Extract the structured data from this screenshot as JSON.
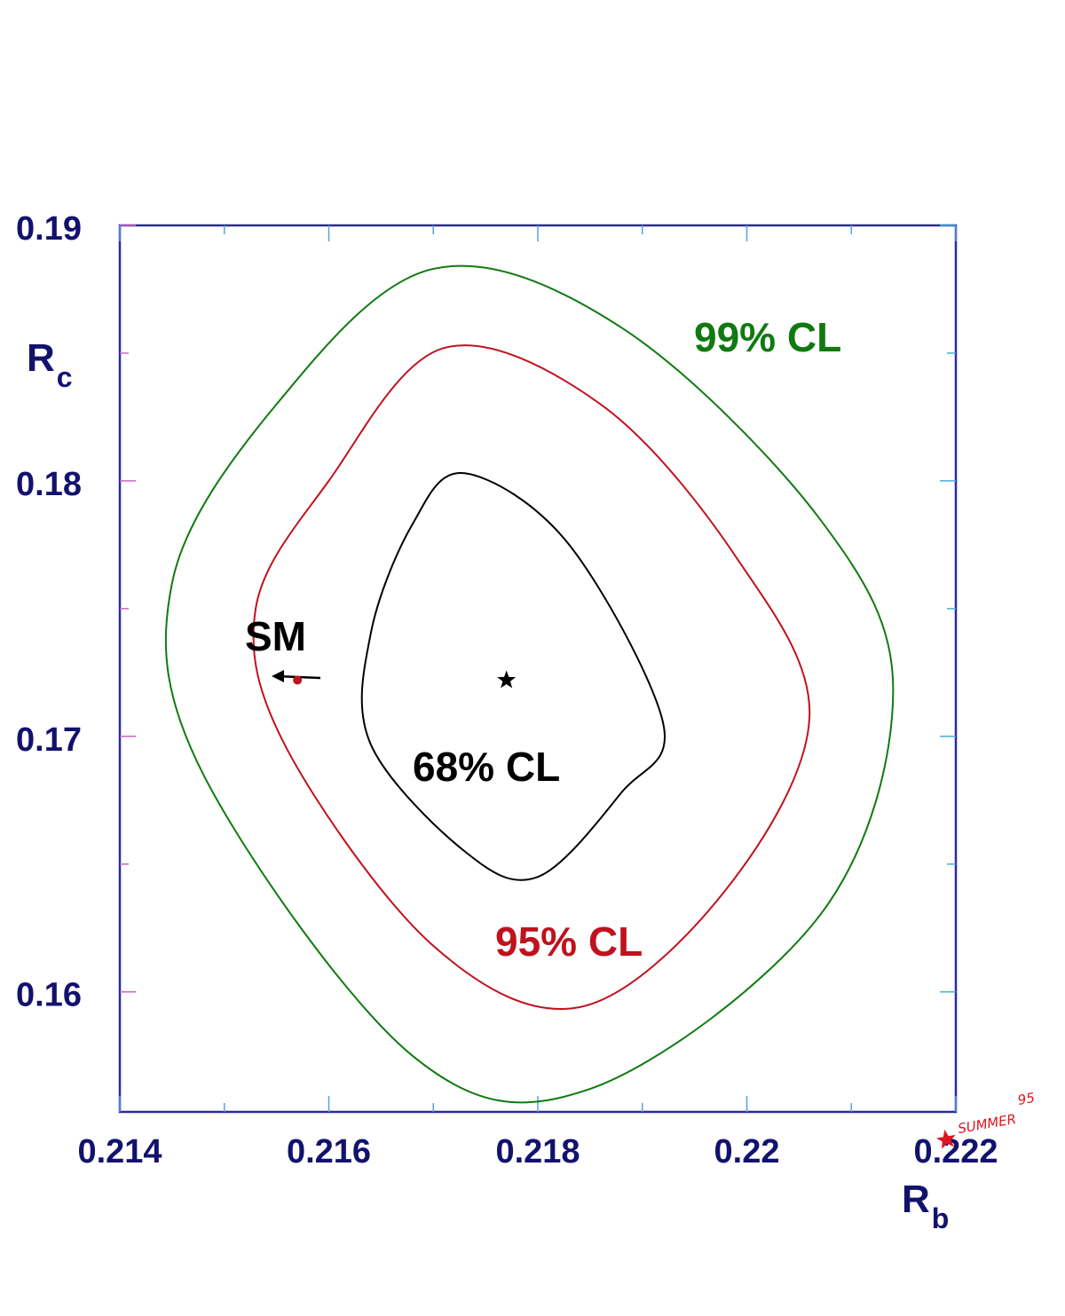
{
  "chart_data": {
    "type": "scatter",
    "xlabel": "R",
    "xlabel_sub": "b",
    "ylabel": "R",
    "ylabel_sub": "c",
    "xlim": [
      0.214,
      0.222
    ],
    "ylim": [
      0.1553,
      0.19
    ],
    "x_ticks": [
      {
        "value": 0.214,
        "label": "0.214"
      },
      {
        "value": 0.216,
        "label": "0.216"
      },
      {
        "value": 0.218,
        "label": "0.218"
      },
      {
        "value": 0.22,
        "label": "0.22"
      },
      {
        "value": 0.222,
        "label": "0.222"
      }
    ],
    "y_ticks": [
      {
        "value": 0.16,
        "label": "0.16"
      },
      {
        "value": 0.17,
        "label": "0.17"
      },
      {
        "value": 0.18,
        "label": "0.18"
      },
      {
        "value": 0.19,
        "label": "0.19"
      }
    ],
    "grid": false,
    "best_fit": {
      "x": 0.2177,
      "y": 0.1722
    },
    "sm_point": {
      "x": 0.2157,
      "y": 0.1722,
      "label": "SM"
    },
    "contours": [
      {
        "name": "68% CL",
        "label": "68% CL",
        "color": "#000000",
        "points": [
          [
            0.2192,
            0.1705
          ],
          [
            0.2188,
            0.1678
          ],
          [
            0.218,
            0.1645
          ],
          [
            0.2173,
            0.1655
          ],
          [
            0.2164,
            0.1697
          ],
          [
            0.2164,
            0.174
          ],
          [
            0.2168,
            0.1783
          ],
          [
            0.2173,
            0.1803
          ],
          [
            0.2183,
            0.1775
          ]
        ]
      },
      {
        "name": "95% CL",
        "label": "95% CL",
        "color": "#c0121e",
        "points": [
          [
            0.2206,
            0.1708
          ],
          [
            0.2198,
            0.164
          ],
          [
            0.2184,
            0.1594
          ],
          [
            0.217,
            0.1618
          ],
          [
            0.2156,
            0.1695
          ],
          [
            0.2153,
            0.175
          ],
          [
            0.216,
            0.18
          ],
          [
            0.2171,
            0.1852
          ],
          [
            0.2186,
            0.183
          ],
          [
            0.2199,
            0.177
          ]
        ]
      },
      {
        "name": "99% CL",
        "label": "99% CL",
        "color": "#107a10",
        "points": [
          [
            0.2214,
            0.1718
          ],
          [
            0.2207,
            0.163
          ],
          [
            0.2185,
            0.1562
          ],
          [
            0.2168,
            0.1575
          ],
          [
            0.2148,
            0.1685
          ],
          [
            0.2145,
            0.176
          ],
          [
            0.2155,
            0.183
          ],
          [
            0.217,
            0.1883
          ],
          [
            0.2188,
            0.186
          ],
          [
            0.2207,
            0.1785
          ]
        ]
      }
    ],
    "annotation": {
      "line1": "95",
      "line2": "SUMMER"
    }
  }
}
